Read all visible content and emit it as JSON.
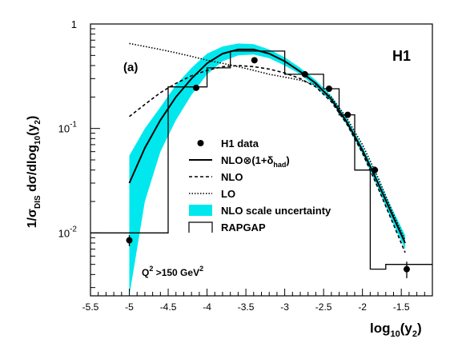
{
  "chart_data": {
    "type": "line",
    "panel_label": "(a)",
    "experiment_label": "H1",
    "cut_label": "Q",
    "cut_label_sup": "2",
    "cut_label_rest": " >150 GeV",
    "cut_label_sup2": "2",
    "xlabel": "log",
    "xlabel_sub": "10",
    "xlabel_rest": "(y",
    "xlabel_sub2": "2",
    "xlabel_end": ")",
    "ylabel": "1/σ",
    "ylabel_sub": "DIS",
    "ylabel_mid": " dσ/dlog",
    "ylabel_sub2": "10",
    "ylabel_rest": "(y",
    "ylabel_sub3": "2",
    "ylabel_end": ")",
    "xlim": [
      -5.5,
      -1.1
    ],
    "ylim": [
      0.0025,
      1.0
    ],
    "yscale": "log",
    "x_ticks": [
      -5.5,
      -5,
      -4.5,
      -4,
      -3.5,
      -3,
      -2.5,
      -2,
      -1.5
    ],
    "x_tick_labels": [
      "-5.5",
      "-5",
      "-4.5",
      "-4",
      "-3.5",
      "-3",
      "-2.5",
      "-2",
      "-1.5"
    ],
    "y_tick_labels": [
      {
        "value": 1,
        "base": "1",
        "exp": ""
      },
      {
        "value": 0.1,
        "base": "10",
        "exp": "-1"
      },
      {
        "value": 0.01,
        "base": "10",
        "exp": "-2"
      }
    ],
    "legend": {
      "position": "center-right",
      "entries": [
        {
          "key": "data",
          "label": "H1 data"
        },
        {
          "key": "nlo_had",
          "label": "NLO⊗(1+δ",
          "label_sub": "had",
          "label_end": ")"
        },
        {
          "key": "nlo",
          "label": "NLO"
        },
        {
          "key": "lo",
          "label": "LO"
        },
        {
          "key": "band",
          "label": "NLO scale uncertainty"
        },
        {
          "key": "rapgap",
          "label": "RAPGAP"
        }
      ]
    },
    "colors": {
      "band": "#00e8ee",
      "lines": "#000000"
    },
    "data_points": {
      "x": [
        -5.0,
        -4.14,
        -3.39,
        -2.74,
        -2.43,
        -2.19,
        -1.84,
        -1.43
      ],
      "y": [
        0.0085,
        0.245,
        0.45,
        0.33,
        0.24,
        0.135,
        0.04,
        0.0045
      ],
      "yerr_rel": [
        0.12,
        0.05,
        0.04,
        0.04,
        0.04,
        0.05,
        0.08,
        0.18
      ]
    },
    "series": [
      {
        "key": "nlo_had",
        "x": [
          -5.0,
          -4.8,
          -4.6,
          -4.4,
          -4.2,
          -4.0,
          -3.8,
          -3.6,
          -3.4,
          -3.2,
          -3.0,
          -2.8,
          -2.6,
          -2.4,
          -2.2,
          -2.0,
          -1.8,
          -1.6,
          -1.45
        ],
        "y": [
          0.03,
          0.065,
          0.12,
          0.2,
          0.3,
          0.42,
          0.52,
          0.57,
          0.57,
          0.52,
          0.44,
          0.35,
          0.27,
          0.19,
          0.115,
          0.062,
          0.03,
          0.014,
          0.008
        ]
      },
      {
        "key": "nlo",
        "x": [
          -5.0,
          -4.8,
          -4.6,
          -4.4,
          -4.2,
          -4.0,
          -3.8,
          -3.6,
          -3.4,
          -3.2,
          -3.0,
          -2.8,
          -2.6,
          -2.4,
          -2.2,
          -2.0,
          -1.8,
          -1.6,
          -1.45
        ],
        "y": [
          0.13,
          0.17,
          0.22,
          0.27,
          0.32,
          0.36,
          0.39,
          0.4,
          0.39,
          0.37,
          0.34,
          0.3,
          0.25,
          0.18,
          0.11,
          0.058,
          0.027,
          0.012,
          0.0065
        ]
      },
      {
        "key": "lo",
        "x": [
          -5.0,
          -4.8,
          -4.6,
          -4.4,
          -4.2,
          -4.0,
          -3.8,
          -3.6,
          -3.4,
          -3.2,
          -3.0,
          -2.8,
          -2.6,
          -2.4,
          -2.2,
          -2.0,
          -1.8,
          -1.6,
          -1.45
        ],
        "y": [
          0.65,
          0.61,
          0.57,
          0.53,
          0.49,
          0.45,
          0.42,
          0.39,
          0.36,
          0.33,
          0.31,
          0.29,
          0.26,
          0.2,
          0.125,
          0.07,
          0.034,
          0.015,
          0.0085
        ]
      }
    ],
    "band": {
      "x": [
        -5.0,
        -4.8,
        -4.6,
        -4.4,
        -4.2,
        -4.0,
        -3.8,
        -3.6,
        -3.4,
        -3.2,
        -3.0,
        -2.8,
        -2.6,
        -2.4,
        -2.2,
        -2.0,
        -1.8,
        -1.6,
        -1.45
      ],
      "low": [
        0.0025,
        0.02,
        0.06,
        0.12,
        0.21,
        0.33,
        0.44,
        0.5,
        0.51,
        0.47,
        0.4,
        0.33,
        0.25,
        0.18,
        0.108,
        0.057,
        0.027,
        0.012,
        0.007
      ],
      "high": [
        0.055,
        0.1,
        0.16,
        0.26,
        0.38,
        0.52,
        0.61,
        0.65,
        0.64,
        0.57,
        0.48,
        0.38,
        0.29,
        0.205,
        0.125,
        0.067,
        0.033,
        0.016,
        0.0095
      ]
    },
    "rapgap_bins": {
      "edges": [
        -5.5,
        -4.5,
        -4.0,
        -3.7,
        -3.0,
        -2.5,
        -2.3,
        -2.1,
        -1.9,
        -1.7,
        -1.1
      ],
      "values": [
        0.01,
        0.25,
        0.38,
        0.55,
        0.33,
        0.24,
        0.135,
        0.04,
        0.0045,
        0.005
      ]
    }
  }
}
